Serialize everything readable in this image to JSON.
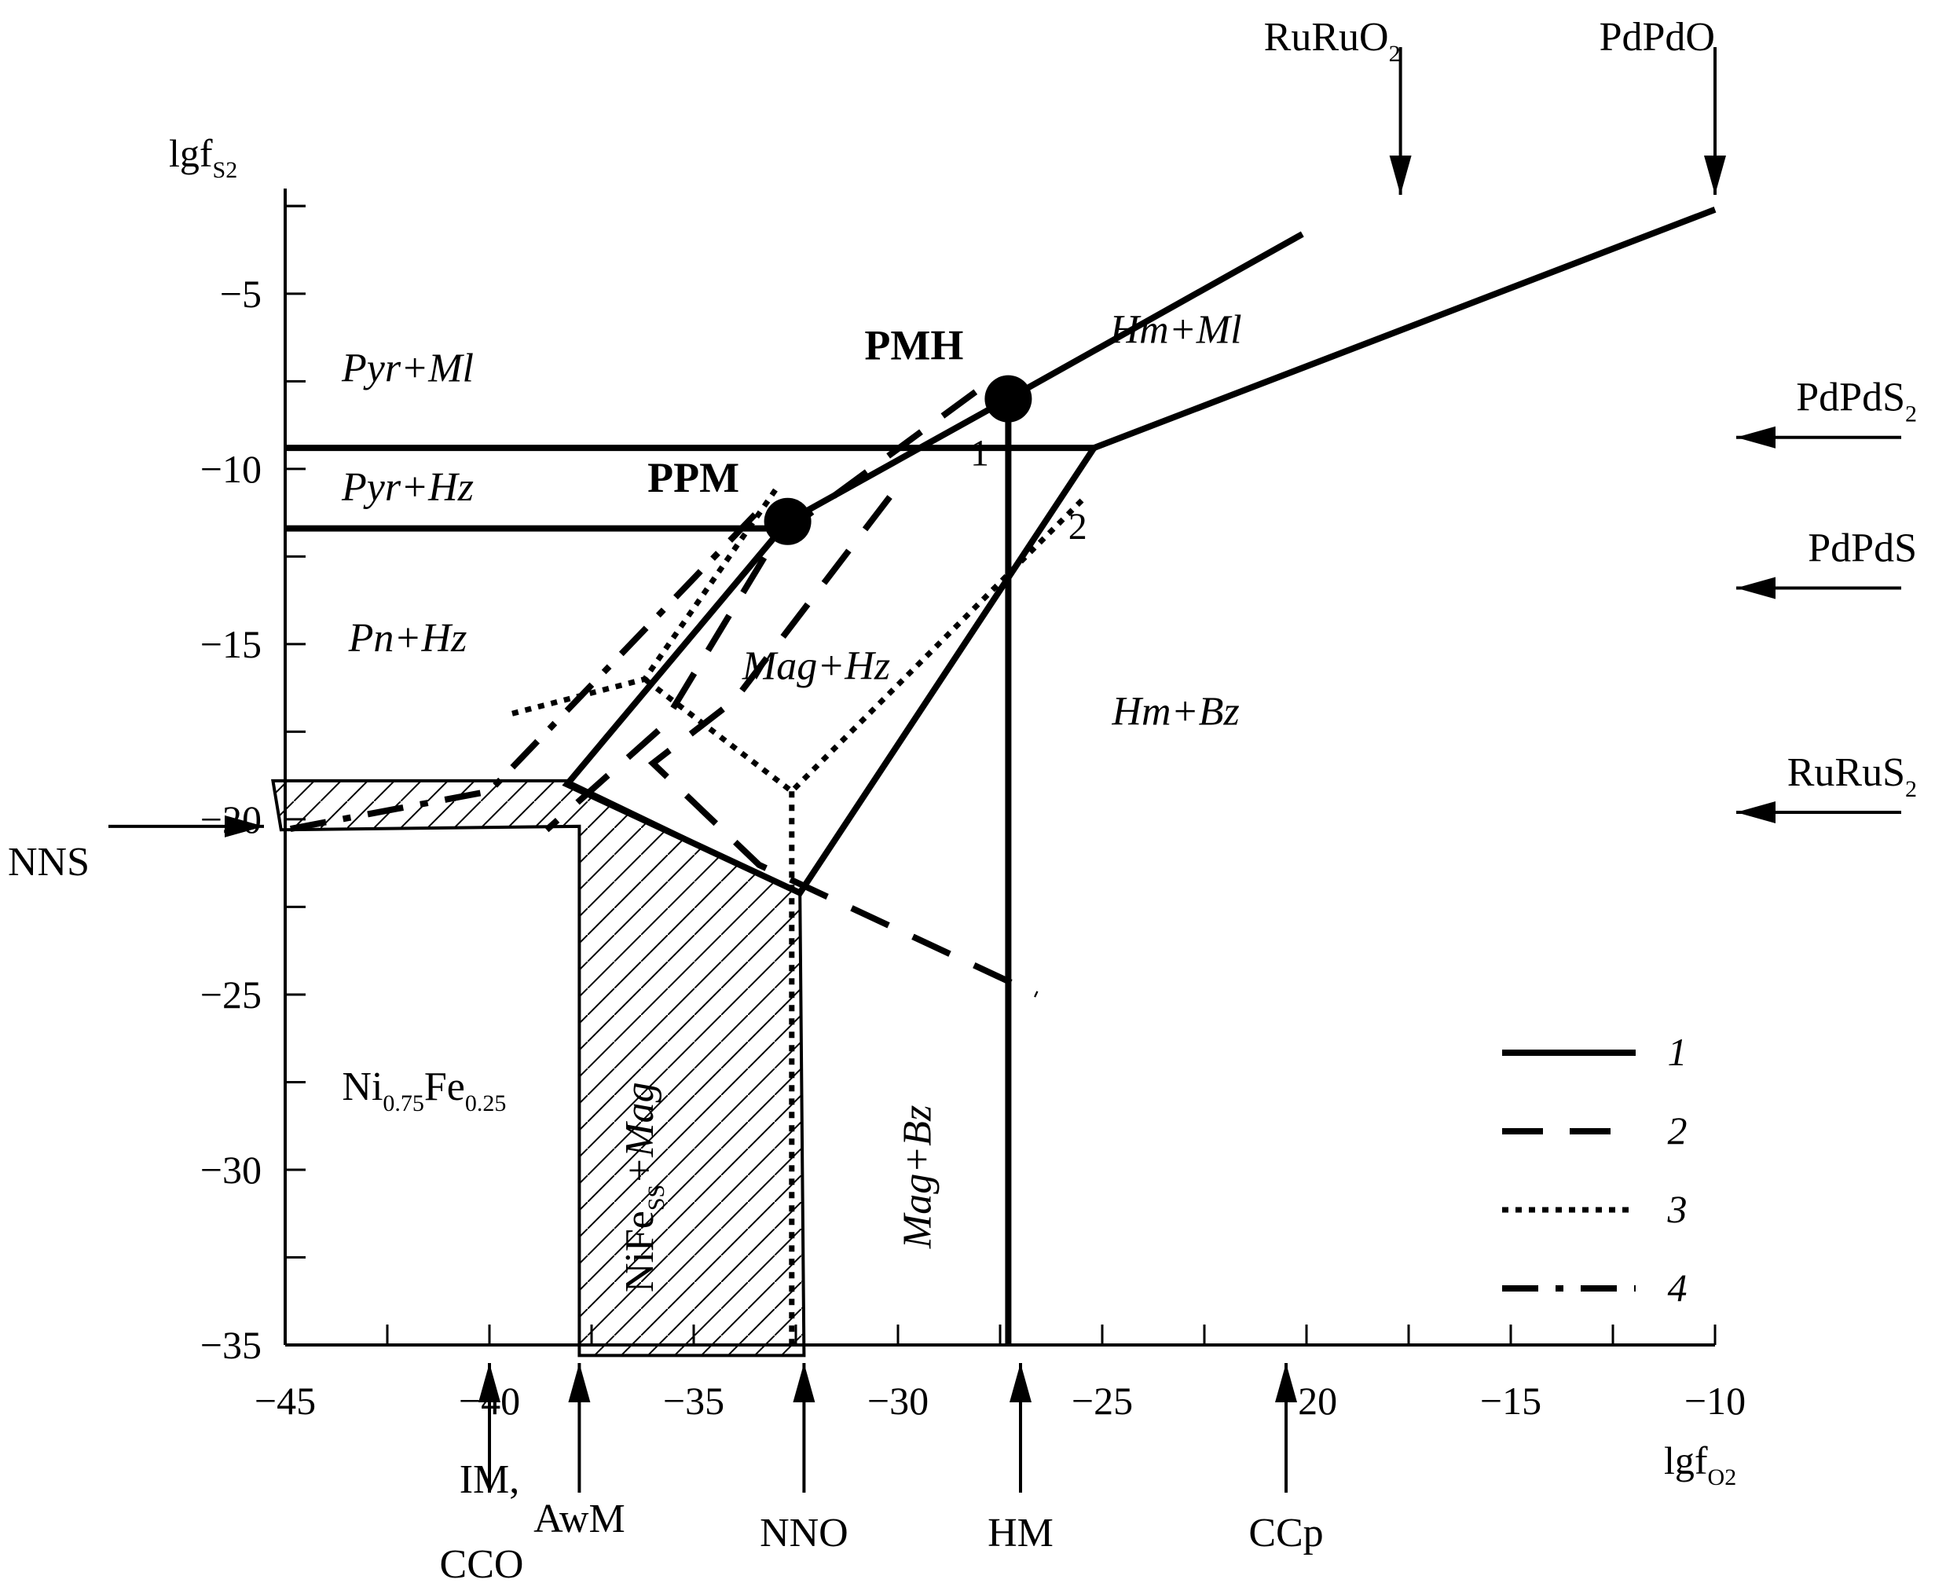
{
  "chart_data": {
    "type": "line",
    "x_axis": {
      "label": "lgf",
      "label_sub": "O2",
      "range": [
        -45,
        -10
      ],
      "ticks": [
        -45,
        -40,
        -35,
        -30,
        -25,
        -20,
        -15,
        -10
      ],
      "tick_labels": [
        "−45",
        "−40",
        "−35",
        "−30",
        "−25",
        "−20",
        "−15",
        "−10"
      ]
    },
    "y_axis": {
      "label": "lgf",
      "label_sub": "S2",
      "range": [
        -35,
        -2
      ],
      "ticks": [
        -5,
        -10,
        -15,
        -20,
        -25,
        -30,
        -35
      ],
      "tick_labels": [
        "−5",
        "−10",
        "−15",
        "−20",
        "−25",
        "−30",
        "−35"
      ]
    },
    "invariant_points": [
      {
        "label": "PMH",
        "x": -27.3,
        "y": -8.0
      },
      {
        "label": "PPM",
        "x": -32.7,
        "y": -11.5
      }
    ],
    "regions": [
      {
        "label": "Pyr+Ml",
        "x": -42.0,
        "y": -7.5
      },
      {
        "label": "Pyr+Hz",
        "x": -42.0,
        "y": -10.9
      },
      {
        "label": "Pn+Hz",
        "x": -42.0,
        "y": -15.2
      },
      {
        "label": "Mag+Hz",
        "x": -32.0,
        "y": -16.0
      },
      {
        "label": "Hm+Ml",
        "x": -23.2,
        "y": -6.4
      },
      {
        "label": "Hm+Bz",
        "x": -23.2,
        "y": -17.3
      },
      {
        "label": "Mag+Bz",
        "x": -29.2,
        "y": -30.2,
        "vertical": true
      }
    ],
    "compound_labels": [
      {
        "base": "Ni",
        "sub": "0.75",
        "base2": "Fe",
        "sub2": "0.25",
        "x": -41.3,
        "y": -28.0
      },
      {
        "base": "NiFe",
        "sub": "SS",
        "suffix": "+Mag",
        "x": -36.0,
        "y": -30.5,
        "vertical": true
      }
    ],
    "curve_numbers": [
      {
        "label": "1",
        "x": -28.0,
        "y": -9.9
      },
      {
        "label": "2",
        "x": -25.6,
        "y": -12.0
      }
    ],
    "series": [
      {
        "name": "1",
        "style": "solid",
        "segments": [
          [
            [
              -45,
              -9.4
            ],
            [
              -25.2,
              -9.4
            ]
          ],
          [
            [
              -45,
              -11.7
            ],
            [
              -32.7,
              -11.7
            ],
            [
              -32.7,
              -11.5
            ],
            [
              -27.3,
              -8.0
            ],
            [
              -20.1,
              -3.3
            ]
          ],
          [
            [
              -27.3,
              -8.0
            ],
            [
              -27.3,
              -35.0
            ]
          ],
          [
            [
              -25.2,
              -9.4
            ],
            [
              -10.0,
              -2.6
            ]
          ],
          [
            [
              -25.2,
              -9.4
            ],
            [
              -32.4,
              -22.1
            ],
            [
              -38.1,
              -19.0
            ],
            [
              -32.7,
              -11.5
            ]
          ]
        ]
      },
      {
        "name": "2",
        "style": "dashed",
        "segments": [
          [
            [
              -28.1,
              -7.8
            ],
            [
              -33.0,
              -12.0
            ],
            [
              -35.8,
              -17.4
            ],
            [
              -38.6,
              -20.3
            ]
          ],
          [
            [
              -30.2,
              -10.8
            ],
            [
              -34.0,
              -16.6
            ],
            [
              -36.0,
              -18.4
            ],
            [
              -33.4,
              -21.3
            ],
            [
              -26.6,
              -25.0
            ]
          ]
        ]
      },
      {
        "name": "3",
        "style": "dotted",
        "segments": [
          [
            [
              -33.0,
              -10.6
            ],
            [
              -36.2,
              -16.0
            ],
            [
              -39.5,
              -17.0
            ]
          ],
          [
            [
              -25.5,
              -10.9
            ],
            [
              -32.6,
              -19.2
            ],
            [
              -36.2,
              -16.0
            ]
          ],
          [
            [
              -32.6,
              -19.2
            ],
            [
              -32.6,
              -35.0
            ]
          ]
        ]
      },
      {
        "name": "4",
        "style": "dash-dot",
        "segments": [
          [
            [
              -33.5,
              -11.3
            ],
            [
              -37.2,
              -15.8
            ],
            [
              -40.0,
              -19.2
            ],
            [
              -45.0,
              -20.3
            ]
          ]
        ]
      }
    ],
    "hatched_area": [
      [
        -45.3,
        -18.9
      ],
      [
        -38.1,
        -18.9
      ],
      [
        -32.4,
        -22.1
      ],
      [
        -32.3,
        -35.3
      ],
      [
        -37.8,
        -35.3
      ],
      [
        -37.8,
        -20.2
      ],
      [
        -45.1,
        -20.3
      ]
    ],
    "buffers_x": [
      {
        "label": "IM,",
        "label2": "CCO",
        "x": -40.0
      },
      {
        "label": "AwM",
        "x": -37.8
      },
      {
        "label": "NNO",
        "x": -32.3
      },
      {
        "label": "HM",
        "x": -27.0
      },
      {
        "label": "CCp",
        "x": -20.5
      }
    ],
    "buffers_top": [
      {
        "label": "RuRuO",
        "sub": "2",
        "x": -17.7
      },
      {
        "label": "PdPdO",
        "x": -10.0
      }
    ],
    "buffers_right": [
      {
        "label": "PdPdS",
        "sub": "2",
        "y": -9.1
      },
      {
        "label": "PdPdS",
        "y": -13.4
      },
      {
        "label": "RuRuS",
        "sub": "2",
        "y": -19.8
      }
    ],
    "buffers_left": [
      {
        "label": "NNS",
        "y": -20.2
      }
    ],
    "legend": {
      "position": "bottom-right",
      "entries": [
        {
          "label": "1",
          "style": "solid"
        },
        {
          "label": "2",
          "style": "dashed"
        },
        {
          "label": "3",
          "style": "dotted"
        },
        {
          "label": "4",
          "style": "dash-dot"
        }
      ]
    },
    "grid": false
  }
}
